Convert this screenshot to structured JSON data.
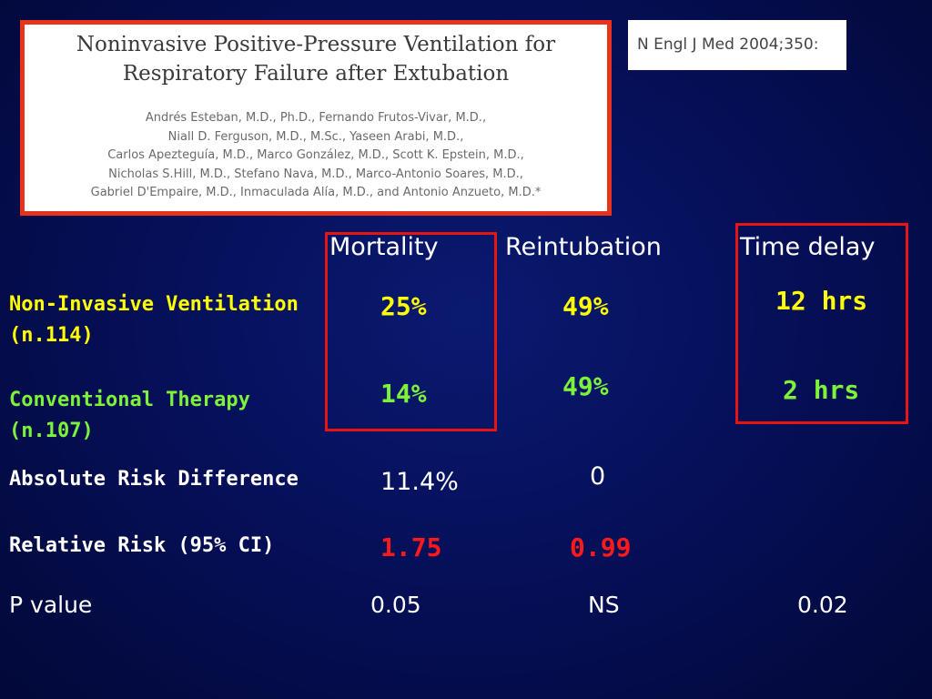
{
  "citation": {
    "title_line1": "Noninvasive Positive-Pressure Ventilation for",
    "title_line2": "Respiratory Failure after Extubation",
    "authors": [
      "Andrés Esteban, M.D., Ph.D., Fernando Frutos-Vivar, M.D.,",
      "Niall D. Ferguson, M.D., M.Sc., Yaseen Arabi, M.D.,",
      "Carlos Apezteguía, M.D., Marco González, M.D., Scott K. Epstein, M.D.,",
      "Nicholas S.Hill, M.D., Stefano Nava, M.D., Marco-Antonio Soares, M.D.,",
      "Gabriel D'Empaire, M.D., Inmaculada Alía, M.D., and Antonio Anzueto, M.D.*"
    ]
  },
  "journal_ref": "N Engl J Med 2004;350:",
  "colors": {
    "highlight_border": "#e8140f",
    "yellow": "#ffff00",
    "green": "#7cf23a",
    "red": "#ff1a1a"
  },
  "columns": {
    "mortality": "Mortality",
    "reintubation": "Reintubation",
    "time_delay": "Time delay"
  },
  "rows": {
    "niv": {
      "label_line1": "Non-Invasive Ventilation",
      "label_line2": "(n.114)",
      "mortality": "25%",
      "reintubation": "49%",
      "time_delay": "12 hrs"
    },
    "conventional": {
      "label_line1": "Conventional Therapy",
      "label_line2": "(n.107)",
      "mortality": "14%",
      "reintubation": "49%",
      "time_delay": "2 hrs"
    },
    "ard": {
      "label": "Absolute Risk Difference",
      "mortality": "11.4%",
      "reintubation": "0"
    },
    "rr": {
      "label": "Relative Risk (95% CI)",
      "mortality": "1.75",
      "reintubation": "0.99"
    },
    "pvalue": {
      "label": "P value",
      "mortality": "0.05",
      "reintubation": "NS",
      "time_delay": "0.02"
    }
  }
}
